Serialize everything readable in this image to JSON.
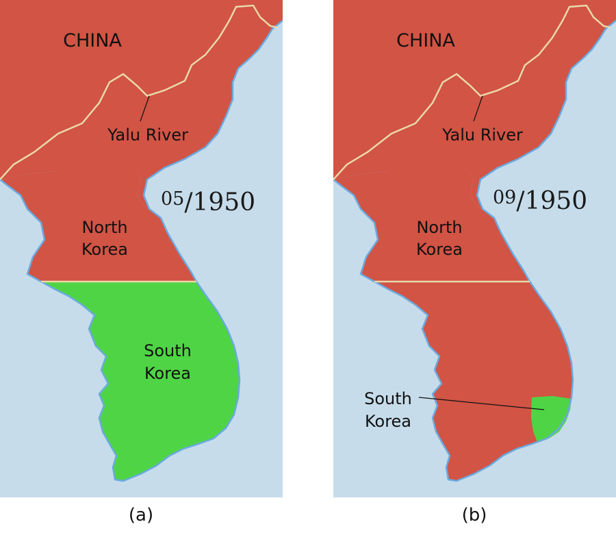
{
  "colors": {
    "sea": "#c6dcea",
    "north": "#d15445",
    "south": "#4fd446",
    "border": "#ead9a8",
    "coast": "#6aaae0"
  },
  "panels": [
    {
      "caption": "(a)",
      "date": {
        "month": "05",
        "year": "/1950"
      },
      "labels": {
        "china": "CHINA",
        "river": "Yalu River",
        "north_line1": "North",
        "north_line2": "Korea",
        "south_line1": "South",
        "south_line2": "Korea"
      },
      "south_held": "most of the peninsula south of the 38th parallel"
    },
    {
      "caption": "(b)",
      "date": {
        "month": "09",
        "year": "/1950"
      },
      "labels": {
        "china": "CHINA",
        "river": "Yalu River",
        "north_line1": "North",
        "north_line2": "Korea",
        "south_line1": "South",
        "south_line2": "Korea"
      },
      "south_held": "small southeastern pocket"
    }
  ]
}
